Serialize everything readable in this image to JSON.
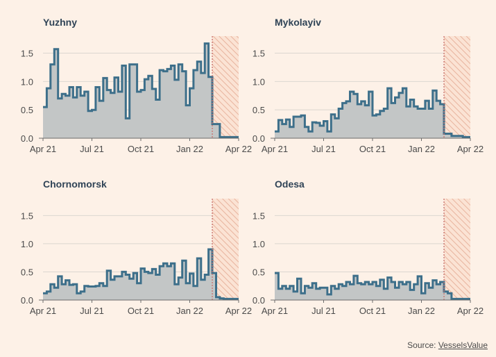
{
  "chart_data": [
    {
      "type": "area",
      "title": "Yuzhny",
      "ylim": [
        0,
        1.8
      ],
      "yticks": [
        0.0,
        0.5,
        1.0,
        1.5
      ],
      "ytick_labels": [
        "0.0",
        "0.5",
        "1.0",
        "1.5"
      ],
      "xtick_labels": [
        "Apr 21",
        "Jul 21",
        "Oct 21",
        "Jan 22",
        "Apr 22"
      ],
      "week_start": 0,
      "values": [
        0.55,
        0.88,
        1.3,
        1.57,
        0.7,
        0.78,
        0.75,
        0.9,
        0.72,
        0.9,
        0.75,
        0.82,
        0.48,
        0.5,
        0.9,
        0.66,
        1.06,
        0.85,
        0.8,
        1.07,
        0.82,
        1.28,
        0.35,
        1.3,
        1.3,
        0.82,
        0.85,
        1.04,
        1.1,
        0.87,
        0.68,
        1.2,
        1.18,
        1.22,
        1.28,
        1.03,
        1.3,
        1.18,
        0.58,
        0.88,
        1.2,
        1.35,
        1.15,
        1.67,
        1.08,
        0.25,
        0.25,
        0.02,
        0.02,
        0.02,
        0.02,
        0.02
      ],
      "grid": true,
      "shaded_region_start_week": 45
    },
    {
      "type": "area",
      "title": "Mykolayiv",
      "ylim": [
        0,
        1.8
      ],
      "yticks": [
        0.0,
        0.5,
        1.0,
        1.5
      ],
      "ytick_labels": [
        "0.0",
        "0.5",
        "1.0",
        "1.5"
      ],
      "xtick_labels": [
        "Apr 21",
        "Jul 21",
        "Oct 21",
        "Jan 22",
        "Apr 22"
      ],
      "week_start": 0,
      "values": [
        0.12,
        0.32,
        0.25,
        0.33,
        0.2,
        0.38,
        0.38,
        0.4,
        0.2,
        0.12,
        0.28,
        0.27,
        0.22,
        0.3,
        0.12,
        0.42,
        0.35,
        0.52,
        0.62,
        0.65,
        0.82,
        0.78,
        0.6,
        0.65,
        0.58,
        0.82,
        0.4,
        0.42,
        0.48,
        0.52,
        0.88,
        0.62,
        0.72,
        0.8,
        0.88,
        0.56,
        0.68,
        0.56,
        0.52,
        0.52,
        0.66,
        0.52,
        0.84,
        0.66,
        0.6,
        0.08,
        0.08,
        0.04,
        0.04,
        0.04,
        0.02,
        0.02
      ],
      "grid": true,
      "shaded_region_start_week": 45
    },
    {
      "type": "area",
      "title": "Chornomorsk",
      "ylim": [
        0,
        1.8
      ],
      "yticks": [
        0.0,
        0.5,
        1.0,
        1.5
      ],
      "ytick_labels": [
        "0.0",
        "0.5",
        "1.0",
        "1.5"
      ],
      "xtick_labels": [
        "Apr 21",
        "Jul 21",
        "Oct 21",
        "Jan 22",
        "Apr 22"
      ],
      "week_start": 0,
      "values": [
        0.12,
        0.15,
        0.28,
        0.22,
        0.42,
        0.28,
        0.35,
        0.27,
        0.28,
        0.12,
        0.15,
        0.25,
        0.24,
        0.24,
        0.25,
        0.3,
        0.25,
        0.52,
        0.36,
        0.42,
        0.42,
        0.5,
        0.45,
        0.38,
        0.48,
        0.3,
        0.56,
        0.5,
        0.48,
        0.55,
        0.45,
        0.6,
        0.65,
        0.6,
        0.65,
        0.28,
        0.4,
        0.7,
        0.3,
        0.47,
        0.25,
        0.74,
        0.36,
        0.45,
        0.9,
        0.48,
        0.05,
        0.03,
        0.02,
        0.02,
        0.02,
        0.02
      ],
      "grid": true,
      "shaded_region_start_week": 45
    },
    {
      "type": "area",
      "title": "Odesa",
      "ylim": [
        0,
        1.8
      ],
      "yticks": [
        0.0,
        0.5,
        1.0,
        1.5
      ],
      "ytick_labels": [
        "0.0",
        "0.5",
        "1.0",
        "1.5"
      ],
      "xtick_labels": [
        "Apr 21",
        "Jul 21",
        "Oct 21",
        "Jan 22",
        "Apr 22"
      ],
      "week_start": 0,
      "values": [
        0.48,
        0.2,
        0.25,
        0.2,
        0.25,
        0.15,
        0.38,
        0.12,
        0.25,
        0.22,
        0.3,
        0.2,
        0.22,
        0.22,
        0.1,
        0.25,
        0.2,
        0.28,
        0.25,
        0.32,
        0.28,
        0.43,
        0.3,
        0.28,
        0.32,
        0.28,
        0.32,
        0.25,
        0.36,
        0.2,
        0.4,
        0.32,
        0.22,
        0.32,
        0.28,
        0.32,
        0.18,
        0.28,
        0.42,
        0.12,
        0.3,
        0.22,
        0.35,
        0.28,
        0.32,
        0.15,
        0.12,
        0.02,
        0.02,
        0.02,
        0.02,
        0.02
      ],
      "grid": true,
      "shaded_region_start_week": 45
    }
  ],
  "source": {
    "prefix": "Source: ",
    "link_text": "VesselsValue"
  },
  "colors": {
    "background": "#fdf1e7",
    "line": "#3d6f8a",
    "area": "#c3c6c6",
    "title": "#2f4356",
    "invasion_line": "#c96f6a",
    "hatch": "#e8b49e"
  }
}
